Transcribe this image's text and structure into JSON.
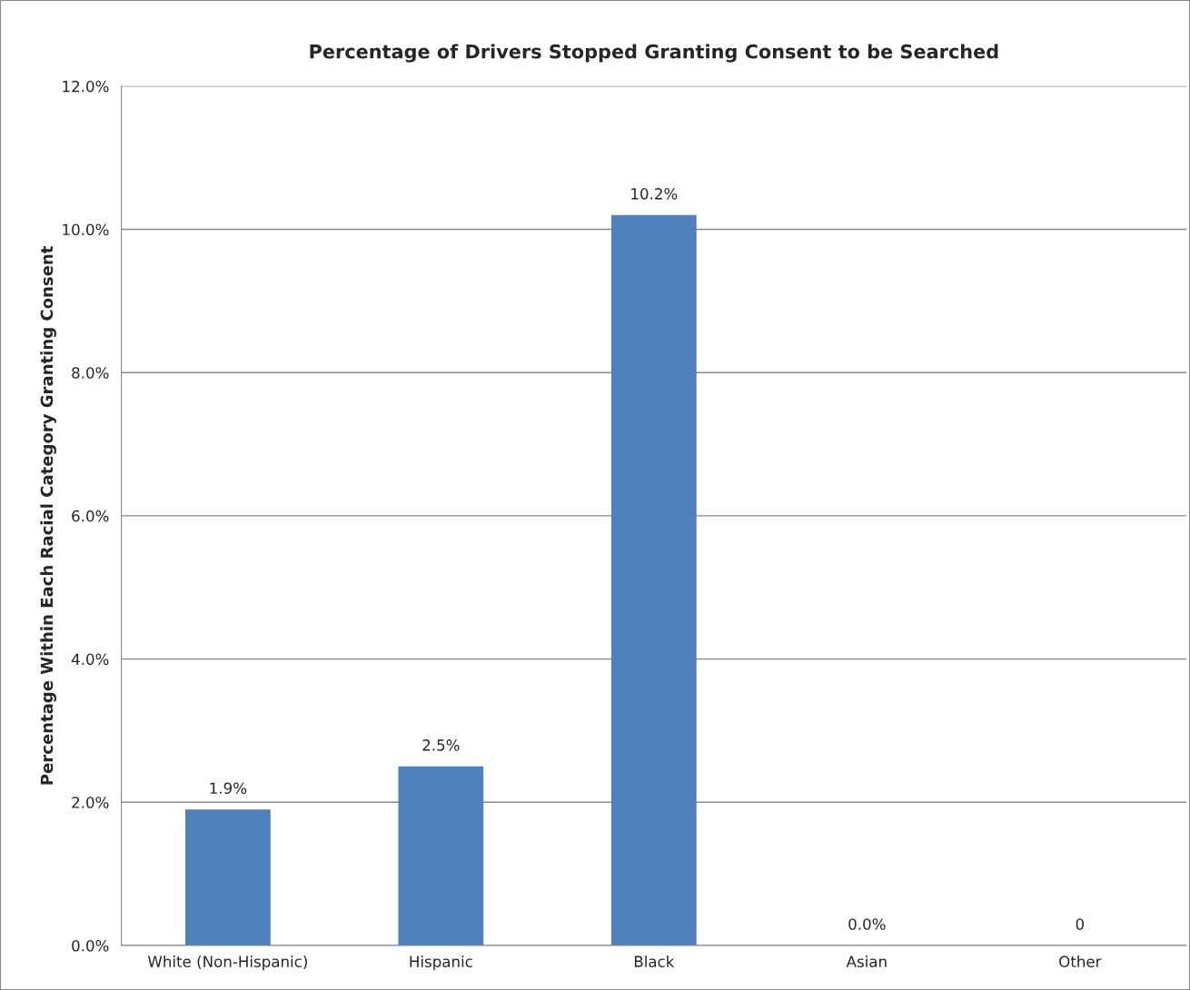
{
  "chart_data": {
    "type": "bar",
    "title": "Percentage of Drivers Stopped Granting Consent to be Searched",
    "ylabel": "Percentage Within Each Racial Category Granting Consent",
    "categories": [
      "White (Non-Hispanic)",
      "Hispanic",
      "Black",
      "Asian",
      "Other"
    ],
    "values": [
      1.9,
      2.5,
      10.2,
      0.0,
      0
    ],
    "value_labels": [
      "1.9%",
      "2.5%",
      "10.2%",
      "0.0%",
      "0"
    ],
    "color": "#4f81bd",
    "ylim": [
      0,
      12
    ],
    "yticks": [
      {
        "value": 0,
        "label": "0.0%"
      },
      {
        "value": 2,
        "label": "2.0%"
      },
      {
        "value": 4,
        "label": "4.0%"
      },
      {
        "value": 6,
        "label": "6.0%"
      },
      {
        "value": 8,
        "label": "8.0%"
      },
      {
        "value": 10,
        "label": "10.0%"
      },
      {
        "value": 12,
        "label": "12.0%"
      }
    ],
    "grid": "y",
    "legend": false
  }
}
